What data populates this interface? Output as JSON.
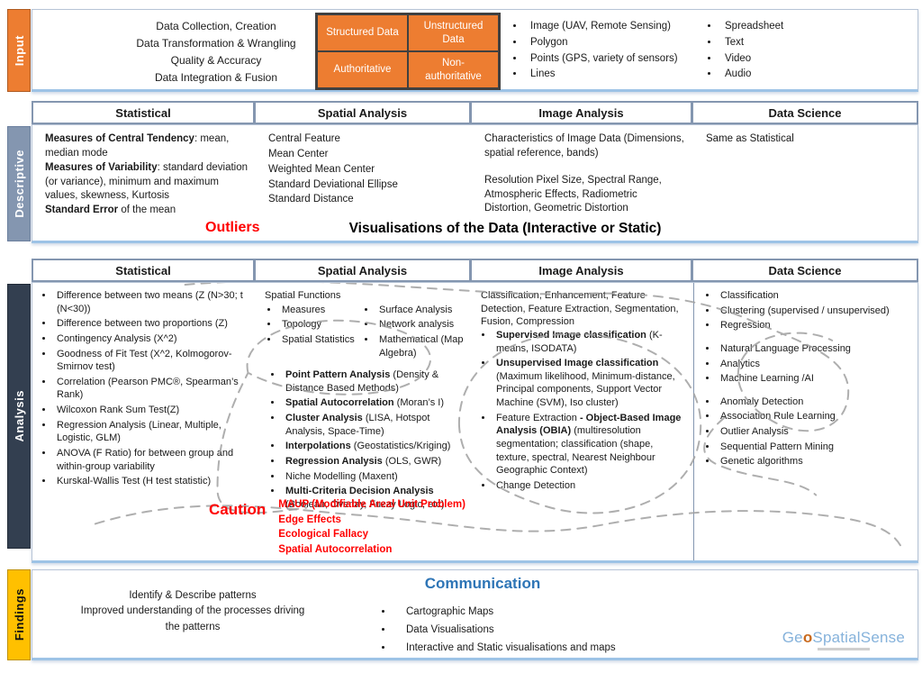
{
  "colors": {
    "input_orange": "#ED7D31",
    "descriptive_blue": "#8496B0",
    "analysis_dark": "#333F50",
    "findings_yellow": "#FFC000",
    "caution_red": "#FF0000",
    "communication_blue": "#2E75B6",
    "logo_blue": "#85B2DB"
  },
  "input": {
    "label": "Input",
    "pipeline_lines": [
      "Data Collection, Creation",
      "Data Transformation & Wrangling",
      "Quality & Accuracy",
      "Data Integration & Fusion"
    ],
    "quadrant": {
      "tl": "Structured Data",
      "tr": "Unstructured Data",
      "bl": "Authoritative",
      "br": "Non-authoritative"
    },
    "spatial_types": [
      "Image (UAV, Remote Sensing)",
      "Polygon",
      "Points (GPS, variety of sensors)",
      "Lines"
    ],
    "media_types": [
      "Spreadsheet",
      "Text",
      "Video",
      "Audio"
    ]
  },
  "columns": {
    "c1": "Statistical",
    "c2": "Spatial Analysis",
    "c3": "Image Analysis",
    "c4": "Data Science"
  },
  "descriptive": {
    "label": "Descriptive",
    "statistical_segments": [
      {
        "t": "Measures of Central Tendency",
        "b": true
      },
      {
        "t": ": mean, median mode\n"
      },
      {
        "t": "Measures of Variability",
        "b": true
      },
      {
        "t": ": standard deviation (or variance), minimum and maximum values, skewness, Kurtosis\n"
      },
      {
        "t": "Standard Error",
        "b": true
      },
      {
        "t": " of the mean"
      }
    ],
    "spatial_lines": [
      "Central Feature",
      "Mean Center",
      "Weighted Mean Center",
      "Standard Deviational Ellipse",
      "Standard Distance"
    ],
    "image_para1": "Characteristics of Image Data (Dimensions, spatial reference, bands)",
    "image_para2": "Resolution Pixel Size, Spectral Range, Atmospheric Effects, Radiometric Distortion, Geometric Distortion",
    "data_science_text": "Same as Statistical",
    "outliers_label": "Outliers",
    "visualisations_label": "Visualisations of the Data (Interactive or Static)"
  },
  "analysis": {
    "label": "Analysis",
    "statistical_items": [
      "Difference between two means (Z (N>30; t (N<30))",
      "Difference between two proportions (Z)",
      "Contingency Analysis (X^2)",
      "Goodness of Fit Test (X^2, Kolmogorov-Smirnov test)",
      "Correlation (Pearson PMC®, Spearman’s Rank)",
      "Wilcoxon Rank Sum Test(Z)",
      "Regression Analysis (Linear, Multiple, Logistic, GLM)",
      "ANOVA (F Ratio) for between group and within-group variability",
      "Kurskal-Wallis Test (H test statistic)"
    ],
    "spatial": {
      "intro": "Spatial Functions",
      "sub_left": [
        "Measures",
        "Topology",
        "Spatial Statistics"
      ],
      "sub_right": [
        "Surface Analysis",
        "Network analysis",
        "Mathematical (Map Algebra)"
      ],
      "items": [
        [
          {
            "t": "Point Pattern Analysis",
            "b": true
          },
          {
            "t": " (Density & Distance Based Methods)"
          }
        ],
        [
          {
            "t": "Spatial Autocorrelation",
            "b": true
          },
          {
            "t": " (Moran’s I)"
          }
        ],
        [
          {
            "t": "Cluster Analysis",
            "b": true
          },
          {
            "t": " (LISA, Hotspot Analysis, Space-Time)"
          }
        ],
        [
          {
            "t": "Interpolations",
            "b": true
          },
          {
            "t": " (Geostatistics/Kriging)"
          }
        ],
        [
          {
            "t": "Regression Analysis",
            "b": true
          },
          {
            "t": " (OLS, GWR)"
          }
        ],
        [
          {
            "t": "Niche Modelling (Maxent)"
          }
        ],
        [
          {
            "t": "Multi-Criteria Decision Analysis",
            "b": true
          },
          {
            "t": " (Boolean, Overlay, Fuzzy Logic, etc)"
          }
        ]
      ],
      "caution_label": "Caution",
      "caution_items": [
        "MAUP (Modifiable Areal Unit Problem)",
        "Edge Effects",
        "Ecological Fallacy",
        "Spatial Autocorrelation"
      ]
    },
    "image": {
      "intro": "Classification, Enhancement, Feature Detection, Feature Extraction, Segmentation, Fusion, Compression",
      "items": [
        [
          {
            "t": "Supervised Image classification",
            "b": true
          },
          {
            "t": " (K-means, ISODATA)"
          }
        ],
        [
          {
            "t": "Unsupervised Image classification",
            "b": true
          },
          {
            "t": " (Maximum likelihood, Minimum-distance, Principal components,  Support Vector Machine (SVM), Iso cluster)"
          }
        ],
        [
          {
            "t": "Feature Extraction "
          },
          {
            "t": "- Object-Based Image Analysis (OBIA)",
            "b": true
          },
          {
            "t": " (multiresolution segmentation; classification (shape, texture,  spectral, Nearest Neighbour Geographic Context)"
          }
        ],
        [
          {
            "t": "Change Detection"
          }
        ]
      ]
    },
    "data_science": {
      "groups": [
        [
          "Classification",
          "Clustering (supervised / unsupervised)",
          "Regression"
        ],
        [
          "Natural Language Processing",
          "Analytics",
          "Machine Learning /AI"
        ],
        [
          "Anomaly Detection",
          "Association Rule Learning",
          "Outlier Analysis",
          "Sequential Pattern Mining",
          "Genetic algorithms"
        ]
      ]
    }
  },
  "findings": {
    "label": "Findings",
    "summary_lines": [
      "Identify & Describe patterns",
      "Improved understanding of the processes driving the patterns"
    ],
    "communication_title": "Communication",
    "items": [
      "Cartographic Maps",
      "Data Visualisations",
      "Interactive and Static visualisations and maps"
    ],
    "logo": {
      "prefix": "Ge",
      "o": "o",
      "suffix": "SpatialSense"
    }
  }
}
